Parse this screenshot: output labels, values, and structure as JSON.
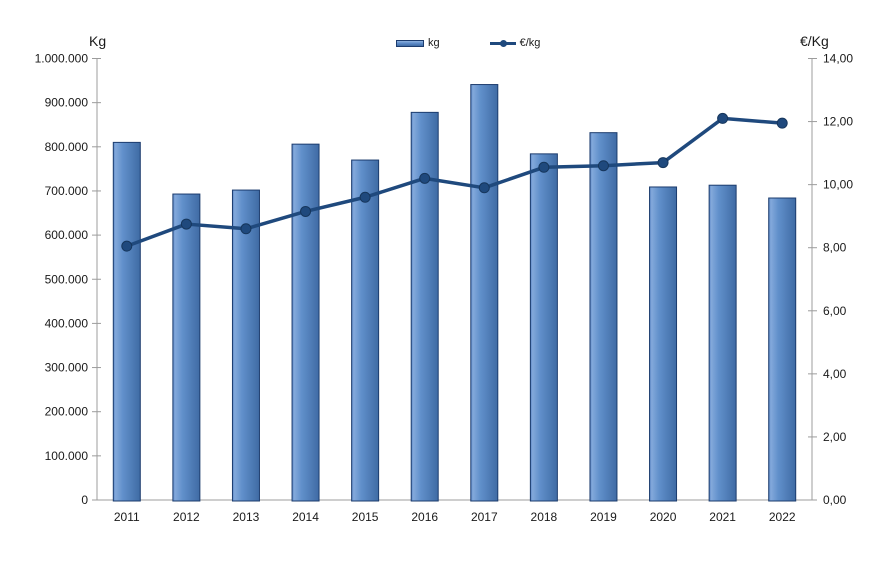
{
  "chart_data": {
    "type": "combo-bar-line",
    "categories": [
      "2011",
      "2012",
      "2013",
      "2014",
      "2015",
      "2016",
      "2017",
      "2018",
      "2019",
      "2020",
      "2021",
      "2022"
    ],
    "series": [
      {
        "name": "kg",
        "type": "bar",
        "axis": "left",
        "values": [
          810000,
          693000,
          702000,
          806000,
          770000,
          878000,
          941000,
          784000,
          832000,
          709000,
          713000,
          684000
        ]
      },
      {
        "name": "€/kg",
        "type": "line",
        "axis": "right",
        "values": [
          8.05,
          8.75,
          8.6,
          9.15,
          9.6,
          10.2,
          9.9,
          10.55,
          10.6,
          10.7,
          12.1,
          11.95
        ]
      }
    ],
    "left_axis": {
      "title": "Kg",
      "min": 0,
      "max": 1000000,
      "step": 100000,
      "tick_labels": [
        "0",
        "100.000",
        "200.000",
        "300.000",
        "400.000",
        "500.000",
        "600.000",
        "700.000",
        "800.000",
        "900.000",
        "1.000.000"
      ]
    },
    "right_axis": {
      "title": "€/Kg",
      "min": 0,
      "max": 14,
      "step": 2,
      "tick_labels": [
        "0,00",
        "2,00",
        "4,00",
        "6,00",
        "8,00",
        "10,00",
        "12,00",
        "14,00"
      ]
    },
    "legend": {
      "position": "top-center",
      "items": [
        "kg",
        "€/kg"
      ]
    },
    "grid": "off",
    "colors": {
      "bar_fill_mid": "#5B86C6",
      "bar_fill_light": "#83A9DB",
      "bar_fill_dark": "#3F6BA4",
      "bar_edge": "#1C3C6E",
      "line": "#1F497D",
      "marker_edge": "#16365C",
      "axis": "#9C9C9C",
      "text": "#1a1a1a"
    }
  }
}
